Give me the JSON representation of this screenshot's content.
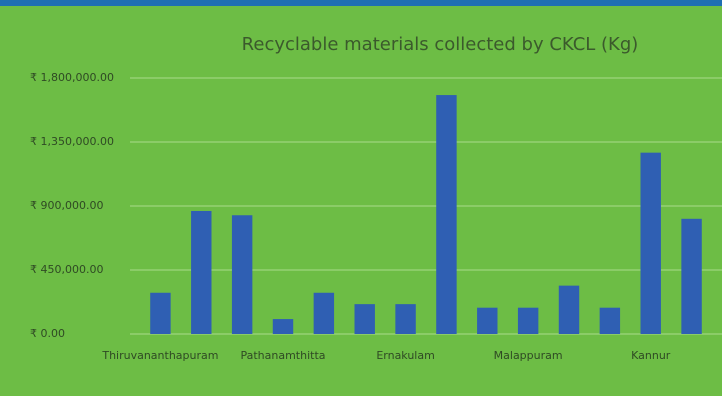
{
  "chart_data": {
    "type": "bar",
    "title": "Recyclable materials collected by CKCL (Kg)",
    "categories": [
      "Thiruvananthapuram",
      null,
      null,
      "Pathanamthitta",
      null,
      null,
      "Ernakulam",
      null,
      null,
      "Malappuram",
      null,
      null,
      "Kannur",
      null
    ],
    "values": [
      290000,
      865000,
      835000,
      105000,
      290000,
      210000,
      210000,
      1680000,
      185000,
      185000,
      340000,
      185000,
      1275000,
      810000
    ],
    "color": "#2f5fb3",
    "ylim": [
      0,
      1800000
    ],
    "yticks": [
      {
        "value": 0,
        "label": "₹ 0.00"
      },
      {
        "value": 450000,
        "label": "₹ 450,000.00"
      },
      {
        "value": 900000,
        "label": "₹ 900,000.00"
      },
      {
        "value": 1350000,
        "label": "₹ 1,350,000.00"
      },
      {
        "value": 1800000,
        "label": "₹ 1,800,000.00"
      }
    ],
    "grid": true
  }
}
